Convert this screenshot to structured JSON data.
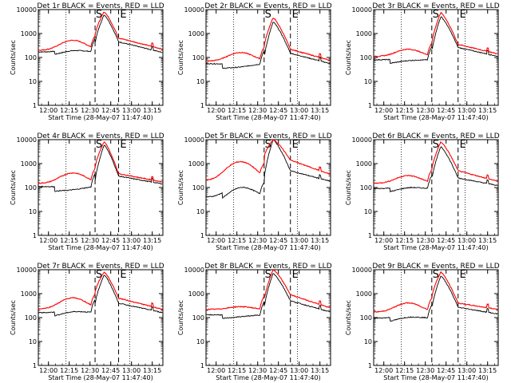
{
  "figure": {
    "xlabel": "Start Time (28-May-07 11:47:40)",
    "ylabel": "Counts/sec",
    "time_ticks": [
      "12:00",
      "12:15",
      "12:30",
      "12:45",
      "13:00",
      "13:15"
    ],
    "y_ticks": [
      "1",
      "10",
      "100",
      "1000",
      "10000"
    ],
    "start_marker": "S",
    "end_marker": "E",
    "colors": {
      "events": "#000000",
      "lld": "#ff0000"
    }
  },
  "chart_data": [
    {
      "type": "line",
      "title": "Det 1r BLACK = Events, RED = LLD",
      "xlabel": "Start Time (28-May-07 11:47:40)",
      "ylabel": "Counts/sec",
      "yscale": "log",
      "ylim": [
        1,
        10000
      ],
      "xlim_min": [
        5,
        95
      ],
      "vlines_dotted_min": [
        25,
        71
      ],
      "vlines_dashed_min": [
        46,
        63
      ],
      "series": [
        {
          "name": "Events",
          "color": "#000000",
          "base": 170,
          "hump": 1.3,
          "drop_min": 17,
          "drop": 0.75,
          "peak": 6000,
          "post": 450,
          "tail": 160
        },
        {
          "name": "LLD",
          "color": "#ff0000",
          "base": 200,
          "hump": 2.6,
          "drop_min": null,
          "drop": 1,
          "peak": 8000,
          "post": 650,
          "tail": 220
        }
      ]
    },
    {
      "type": "line",
      "title": "Det 2r BLACK = Events, RED = LLD",
      "xlabel": "Start Time (28-May-07 11:47:40)",
      "ylabel": "Counts/sec",
      "yscale": "log",
      "ylim": [
        1,
        10000
      ],
      "xlim_min": [
        5,
        95
      ],
      "vlines_dotted_min": [
        25,
        71
      ],
      "vlines_dashed_min": [
        47,
        66
      ],
      "series": [
        {
          "name": "Events",
          "color": "#000000",
          "base": 55,
          "hump": 0.9,
          "drop_min": 17,
          "drop": 0.65,
          "peak": 3000,
          "post": 150,
          "tail": 55
        },
        {
          "name": "LLD",
          "color": "#ff0000",
          "base": 70,
          "hump": 2.3,
          "drop_min": null,
          "drop": 1,
          "peak": 4500,
          "post": 220,
          "tail": 75
        }
      ]
    },
    {
      "type": "line",
      "title": "Det 3r BLACK = Events, RED = LLD",
      "xlabel": "Start Time (28-May-07 11:47:40)",
      "ylabel": "Counts/sec",
      "yscale": "log",
      "ylim": [
        1,
        10000
      ],
      "xlim_min": [
        5,
        95
      ],
      "vlines_dotted_min": [
        25,
        71
      ],
      "vlines_dashed_min": [
        47,
        66
      ],
      "series": [
        {
          "name": "Events",
          "color": "#000000",
          "base": 80,
          "hump": 1.1,
          "drop_min": 17,
          "drop": 0.7,
          "peak": 5000,
          "post": 260,
          "tail": 110
        },
        {
          "name": "LLD",
          "color": "#ff0000",
          "base": 110,
          "hump": 2.0,
          "drop_min": null,
          "drop": 1,
          "peak": 7500,
          "post": 350,
          "tail": 140
        }
      ]
    },
    {
      "type": "line",
      "title": "Det 4r BLACK = Events, RED = LLD",
      "xlabel": "Start Time (28-May-07 11:47:40)",
      "ylabel": "Counts/sec",
      "yscale": "log",
      "ylim": [
        1,
        10000
      ],
      "xlim_min": [
        5,
        95
      ],
      "vlines_dotted_min": [
        25,
        71
      ],
      "vlines_dashed_min": [
        46,
        63
      ],
      "series": [
        {
          "name": "Events",
          "color": "#000000",
          "base": 110,
          "hump": 0.9,
          "drop_min": 17,
          "drop": 0.65,
          "peak": 6000,
          "post": 300,
          "tail": 140
        },
        {
          "name": "LLD",
          "color": "#ff0000",
          "base": 150,
          "hump": 2.7,
          "drop_min": null,
          "drop": 1,
          "peak": 8000,
          "post": 380,
          "tail": 170
        }
      ]
    },
    {
      "type": "line",
      "title": "Det 5r BLACK = Events, RED = LLD",
      "xlabel": "Start Time (28-May-07 11:47:40)",
      "ylabel": "Counts/sec",
      "yscale": "log",
      "ylim": [
        1,
        10000
      ],
      "xlim_min": [
        5,
        95
      ],
      "vlines_dotted_min": [
        25,
        71
      ],
      "vlines_dashed_min": [
        47,
        66
      ],
      "series": [
        {
          "name": "Events",
          "color": "#000000",
          "base": 40,
          "hump": 3.2,
          "drop_min": 17,
          "drop": 0.6,
          "peak": 10000,
          "post": 500,
          "tail": 180
        },
        {
          "name": "LLD",
          "color": "#ff0000",
          "base": 200,
          "hump": 6.0,
          "drop_min": null,
          "drop": 1,
          "peak": 10000,
          "post": 1400,
          "tail": 350
        }
      ]
    },
    {
      "type": "line",
      "title": "Det 6r BLACK = Events, RED = LLD",
      "xlabel": "Start Time (28-May-07 11:47:40)",
      "ylabel": "Counts/sec",
      "yscale": "log",
      "ylim": [
        1,
        10000
      ],
      "xlim_min": [
        5,
        95
      ],
      "vlines_dotted_min": [
        25,
        71
      ],
      "vlines_dashed_min": [
        47,
        66
      ],
      "series": [
        {
          "name": "Events",
          "color": "#000000",
          "base": 90,
          "hump": 1.3,
          "drop_min": 17,
          "drop": 0.7,
          "peak": 5000,
          "post": 250,
          "tail": 120
        },
        {
          "name": "LLD",
          "color": "#ff0000",
          "base": 150,
          "hump": 2.1,
          "drop_min": null,
          "drop": 1,
          "peak": 8000,
          "post": 500,
          "tail": 180
        }
      ]
    },
    {
      "type": "line",
      "title": "Det 7r BLACK = Events, RED = LLD",
      "xlabel": "Start Time (28-May-07 11:47:40)",
      "ylabel": "Counts/sec",
      "yscale": "log",
      "ylim": [
        1,
        10000
      ],
      "xlim_min": [
        5,
        95
      ],
      "vlines_dotted_min": [
        25,
        71
      ],
      "vlines_dashed_min": [
        46,
        63
      ],
      "series": [
        {
          "name": "Events",
          "color": "#000000",
          "base": 160,
          "hump": 1.3,
          "drop_min": 17,
          "drop": 0.7,
          "peak": 6000,
          "post": 400,
          "tail": 160
        },
        {
          "name": "LLD",
          "color": "#ff0000",
          "base": 230,
          "hump": 2.9,
          "drop_min": null,
          "drop": 1,
          "peak": 8000,
          "post": 650,
          "tail": 220
        }
      ]
    },
    {
      "type": "line",
      "title": "Det 8r BLACK = Events, RED = LLD",
      "xlabel": "Start Time (28-May-07 11:47:40)",
      "ylabel": "Counts/sec",
      "yscale": "log",
      "ylim": [
        1,
        10000
      ],
      "xlim_min": [
        5,
        95
      ],
      "vlines_dotted_min": [
        25,
        71
      ],
      "vlines_dashed_min": [
        47,
        66
      ],
      "series": [
        {
          "name": "Events",
          "color": "#000000",
          "base": 130,
          "hump": 1.0,
          "drop_min": 17,
          "drop": 0.7,
          "peak": 7000,
          "post": 500,
          "tail": 170
        },
        {
          "name": "LLD",
          "color": "#ff0000",
          "base": 220,
          "hump": 1.3,
          "drop_min": null,
          "drop": 1,
          "peak": 10000,
          "post": 900,
          "tail": 250
        }
      ]
    },
    {
      "type": "line",
      "title": "Det 9r BLACK = Events, RED = LLD",
      "xlabel": "Start Time (28-May-07 11:47:40)",
      "ylabel": "Counts/sec",
      "yscale": "log",
      "ylim": [
        1,
        10000
      ],
      "xlim_min": [
        5,
        95
      ],
      "vlines_dotted_min": [
        25,
        71
      ],
      "vlines_dashed_min": [
        47,
        66
      ],
      "series": [
        {
          "name": "Events",
          "color": "#000000",
          "base": 95,
          "hump": 1.3,
          "drop_min": 17,
          "drop": 0.7,
          "peak": 5500,
          "post": 270,
          "tail": 140
        },
        {
          "name": "LLD",
          "color": "#ff0000",
          "base": 170,
          "hump": 2.4,
          "drop_min": null,
          "drop": 1,
          "peak": 8000,
          "post": 400,
          "tail": 220
        }
      ]
    }
  ]
}
